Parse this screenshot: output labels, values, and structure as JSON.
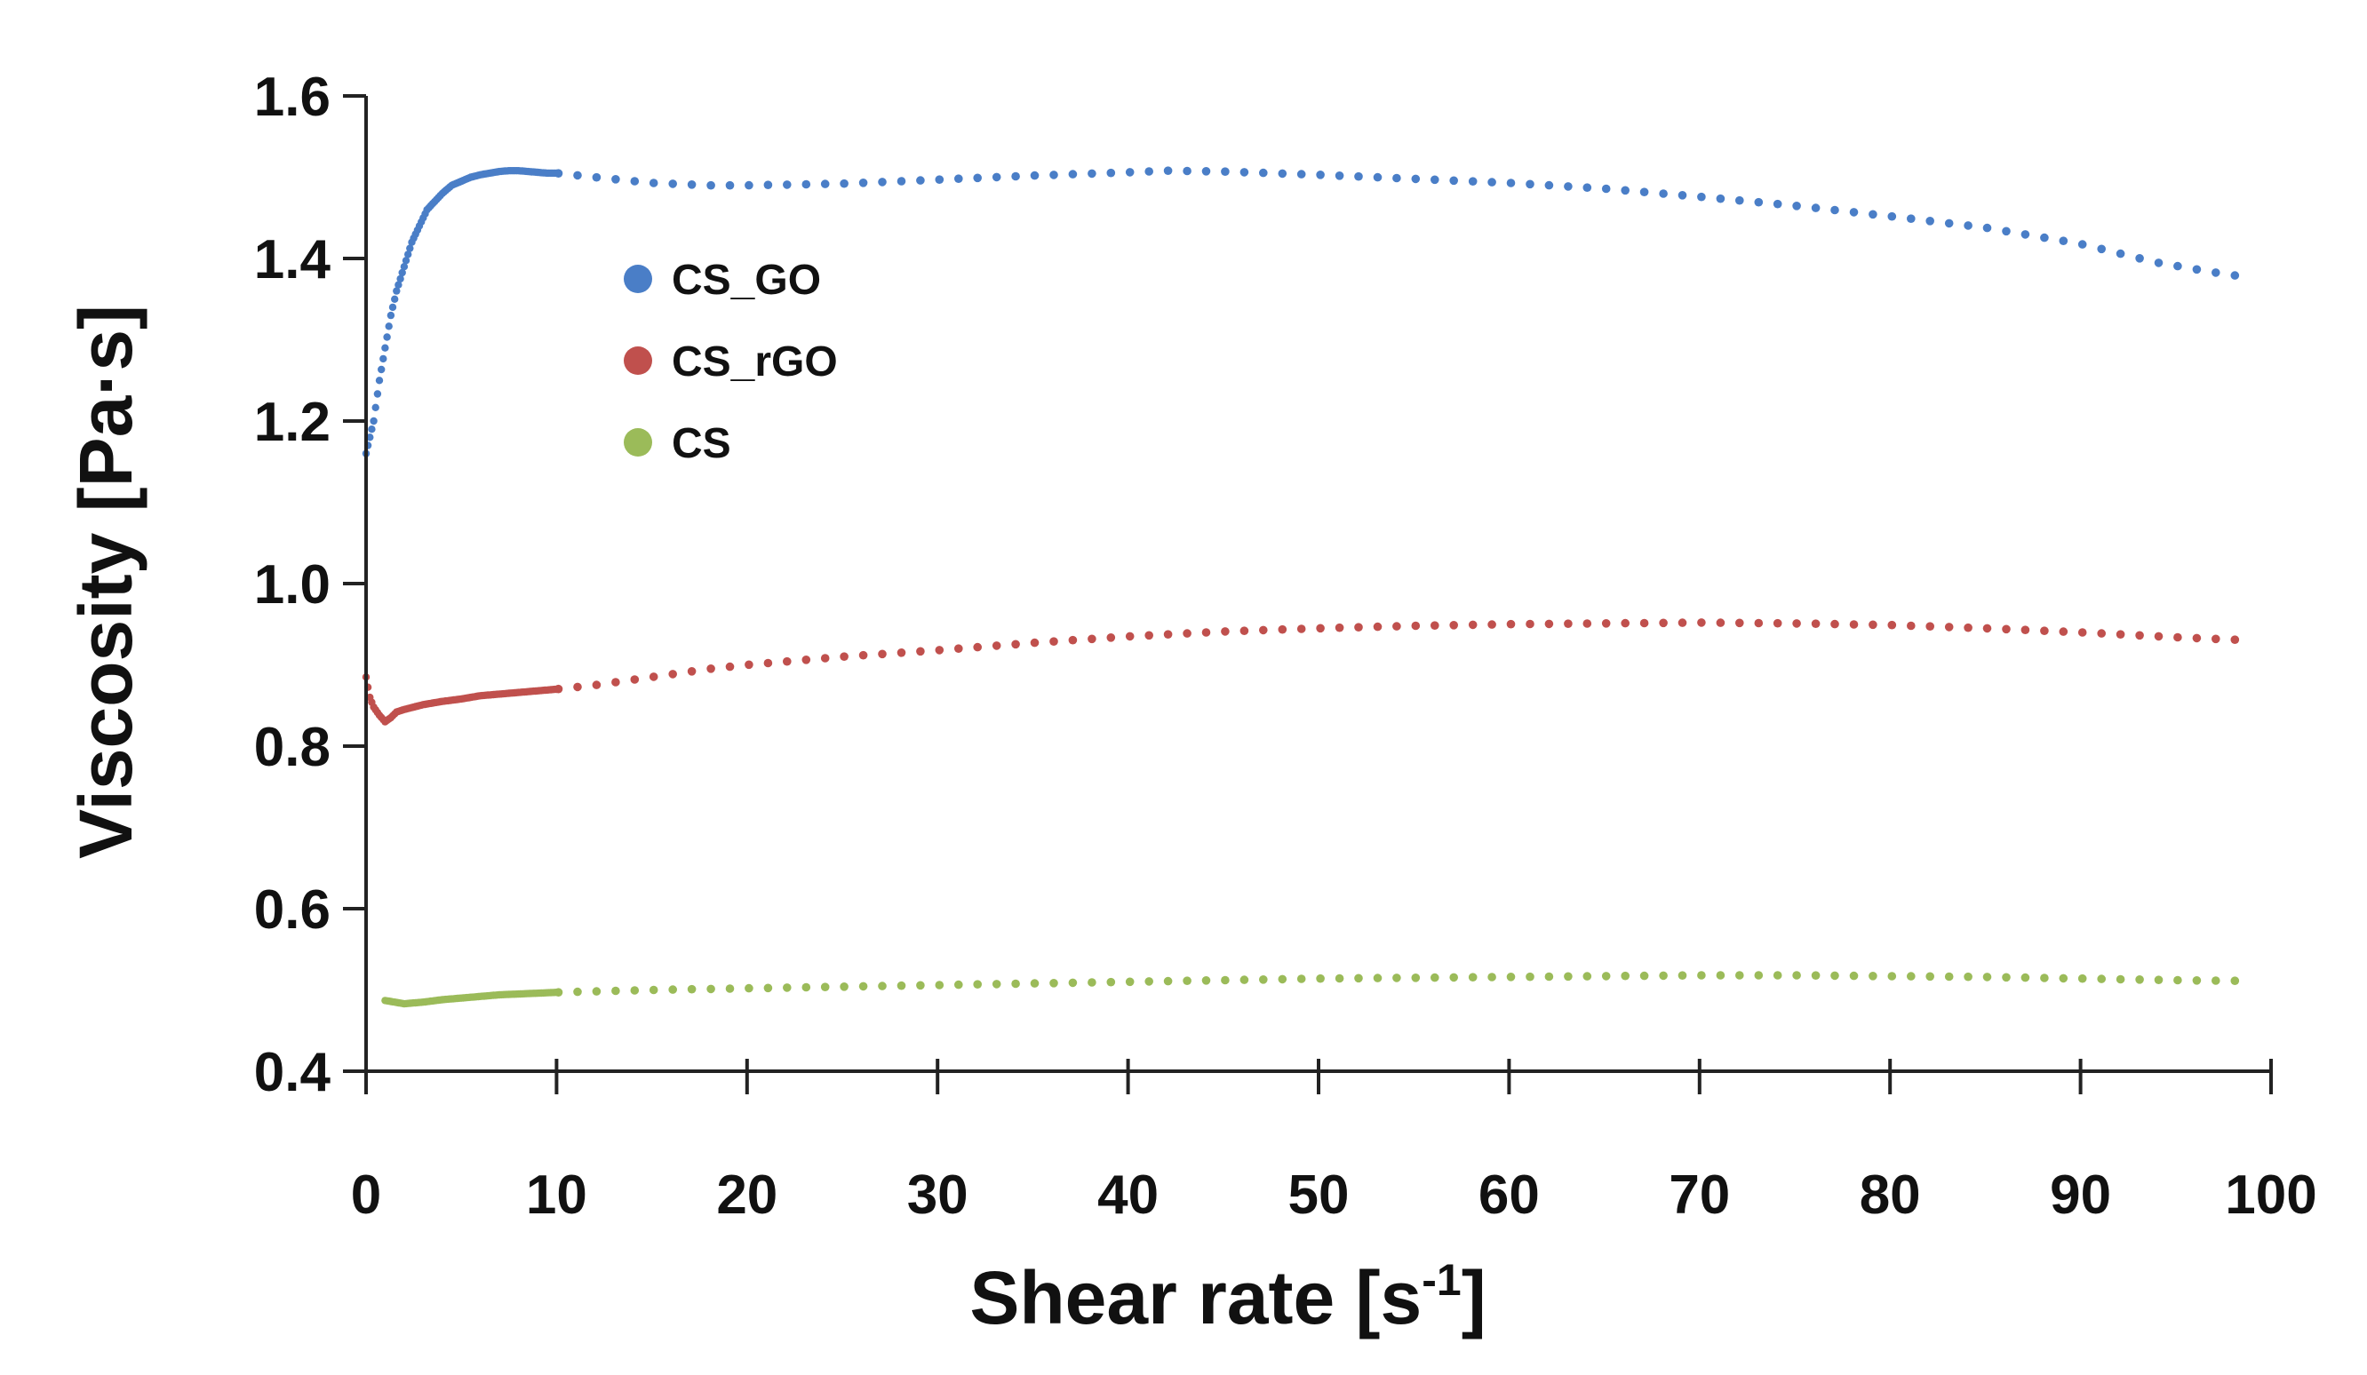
{
  "chart_data": {
    "type": "scatter",
    "xlabel": "Shear rate [s",
    "xlabel_sup": "-1",
    "xlabel_close": "]",
    "ylabel": "Viscosity [Pa·s]",
    "xlim": [
      0,
      100
    ],
    "ylim": [
      0.4,
      1.6
    ],
    "xticks": [
      0,
      10,
      20,
      30,
      40,
      50,
      60,
      70,
      80,
      90,
      100
    ],
    "yticks": [
      "0.4",
      "0.6",
      "0.8",
      "1.0",
      "1.2",
      "1.4",
      "1.6"
    ],
    "grid": false,
    "legend_position": "upper-left inside",
    "series": [
      {
        "name": "CS_GO",
        "color": "#4a7ec7",
        "points": [
          [
            0,
            1.16
          ],
          [
            0.2,
            1.18
          ],
          [
            0.4,
            1.2
          ],
          [
            0.7,
            1.25
          ],
          [
            1,
            1.29
          ],
          [
            1.3,
            1.33
          ],
          [
            1.6,
            1.36
          ],
          [
            2,
            1.39
          ],
          [
            2.4,
            1.42
          ],
          [
            2.8,
            1.44
          ],
          [
            3.2,
            1.46
          ],
          [
            3.6,
            1.47
          ],
          [
            4,
            1.48
          ],
          [
            4.5,
            1.49
          ],
          [
            5,
            1.495
          ],
          [
            5.5,
            1.5
          ],
          [
            6,
            1.503
          ],
          [
            6.5,
            1.505
          ],
          [
            7,
            1.507
          ],
          [
            7.5,
            1.508
          ],
          [
            8,
            1.508
          ],
          [
            8.5,
            1.507
          ],
          [
            9,
            1.506
          ],
          [
            9.5,
            1.505
          ],
          [
            10,
            1.505
          ],
          [
            12,
            1.5
          ],
          [
            15,
            1.493
          ],
          [
            18,
            1.49
          ],
          [
            20,
            1.49
          ],
          [
            25,
            1.492
          ],
          [
            30,
            1.497
          ],
          [
            35,
            1.502
          ],
          [
            40,
            1.506
          ],
          [
            42,
            1.508
          ],
          [
            45,
            1.507
          ],
          [
            50,
            1.503
          ],
          [
            55,
            1.498
          ],
          [
            60,
            1.493
          ],
          [
            65,
            1.486
          ],
          [
            70,
            1.476
          ],
          [
            75,
            1.465
          ],
          [
            80,
            1.452
          ],
          [
            85,
            1.438
          ],
          [
            90,
            1.418
          ],
          [
            94,
            1.395
          ],
          [
            97,
            1.383
          ],
          [
            99,
            1.376
          ]
        ]
      },
      {
        "name": "CS_rGO",
        "color": "#c0504d",
        "points": [
          [
            0,
            0.885
          ],
          [
            0.2,
            0.86
          ],
          [
            0.4,
            0.848
          ],
          [
            0.7,
            0.838
          ],
          [
            1,
            0.83
          ],
          [
            1.3,
            0.835
          ],
          [
            1.6,
            0.842
          ],
          [
            2,
            0.845
          ],
          [
            2.5,
            0.848
          ],
          [
            3,
            0.851
          ],
          [
            4,
            0.855
          ],
          [
            5,
            0.858
          ],
          [
            6,
            0.862
          ],
          [
            7,
            0.864
          ],
          [
            8,
            0.866
          ],
          [
            9,
            0.868
          ],
          [
            10,
            0.87
          ],
          [
            12,
            0.875
          ],
          [
            15,
            0.885
          ],
          [
            18,
            0.895
          ],
          [
            20,
            0.9
          ],
          [
            25,
            0.91
          ],
          [
            30,
            0.918
          ],
          [
            35,
            0.927
          ],
          [
            40,
            0.935
          ],
          [
            45,
            0.941
          ],
          [
            50,
            0.945
          ],
          [
            55,
            0.948
          ],
          [
            60,
            0.95
          ],
          [
            65,
            0.951
          ],
          [
            70,
            0.952
          ],
          [
            75,
            0.951
          ],
          [
            80,
            0.949
          ],
          [
            85,
            0.945
          ],
          [
            90,
            0.94
          ],
          [
            95,
            0.934
          ],
          [
            99,
            0.93
          ]
        ]
      },
      {
        "name": "CS",
        "color": "#9bbb59",
        "points": [
          [
            1,
            0.487
          ],
          [
            2,
            0.483
          ],
          [
            3,
            0.485
          ],
          [
            4,
            0.488
          ],
          [
            5,
            0.49
          ],
          [
            6,
            0.492
          ],
          [
            7,
            0.494
          ],
          [
            8,
            0.495
          ],
          [
            9,
            0.496
          ],
          [
            10,
            0.497
          ],
          [
            15,
            0.5
          ],
          [
            20,
            0.502
          ],
          [
            25,
            0.504
          ],
          [
            30,
            0.506
          ],
          [
            35,
            0.508
          ],
          [
            40,
            0.51
          ],
          [
            45,
            0.512
          ],
          [
            50,
            0.514
          ],
          [
            55,
            0.515
          ],
          [
            60,
            0.516
          ],
          [
            65,
            0.517
          ],
          [
            70,
            0.518
          ],
          [
            75,
            0.518
          ],
          [
            80,
            0.517
          ],
          [
            85,
            0.516
          ],
          [
            90,
            0.514
          ],
          [
            95,
            0.512
          ],
          [
            99,
            0.511
          ]
        ]
      }
    ]
  }
}
